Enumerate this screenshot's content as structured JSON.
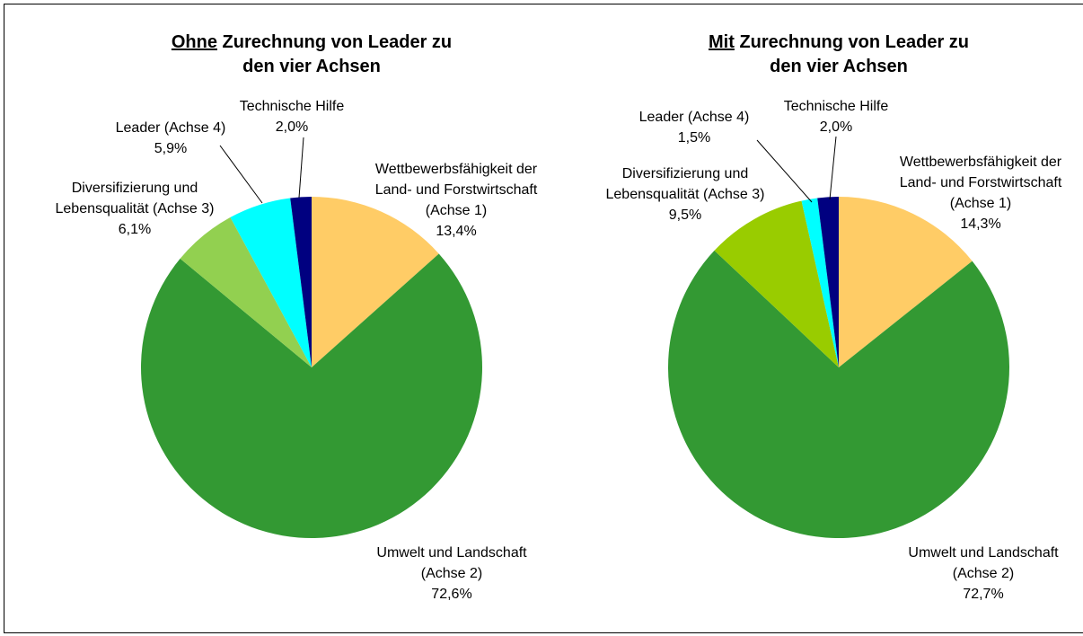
{
  "chart_data": [
    {
      "type": "pie",
      "title": {
        "underlined": "Ohne",
        "rest": "Zurechnung von Leader zu",
        "line2": "den vier Achsen"
      },
      "categories": [
        "Wettbewerbsfähigkeit der\nLand- und Forstwirtschaft\n(Achse 1)",
        "Umwelt und Landschaft\n(Achse 2)",
        "Diversifizierung und\nLebensqualität (Achse 3)",
        "Leader (Achse 4)",
        "Technische Hilfe"
      ],
      "values": [
        13.4,
        72.6,
        6.1,
        5.9,
        2.0
      ],
      "value_labels": [
        "13,4%",
        "72,6%",
        "6,1%",
        "5,9%",
        "2,0%"
      ],
      "colors": [
        "#ffcc66",
        "#339933",
        "#92d050",
        "#00ffff",
        "#000080"
      ]
    },
    {
      "type": "pie",
      "title": {
        "underlined": "Mit",
        "rest": "Zurechnung von Leader zu",
        "line2": "den vier Achsen"
      },
      "categories": [
        "Wettbewerbsfähigkeit der\nLand- und Forstwirtschaft\n(Achse 1)",
        "Umwelt und Landschaft\n(Achse 2)",
        "Diversifizierung und\nLebensqualität (Achse 3)",
        "Leader (Achse 4)",
        "Technische Hilfe"
      ],
      "values": [
        14.3,
        72.7,
        9.5,
        1.5,
        2.0
      ],
      "value_labels": [
        "14,3%",
        "72,7%",
        "9,5%",
        "1,5%",
        "2,0%"
      ],
      "colors": [
        "#ffcc66",
        "#339933",
        "#99cc00",
        "#00ffff",
        "#000080"
      ]
    }
  ]
}
